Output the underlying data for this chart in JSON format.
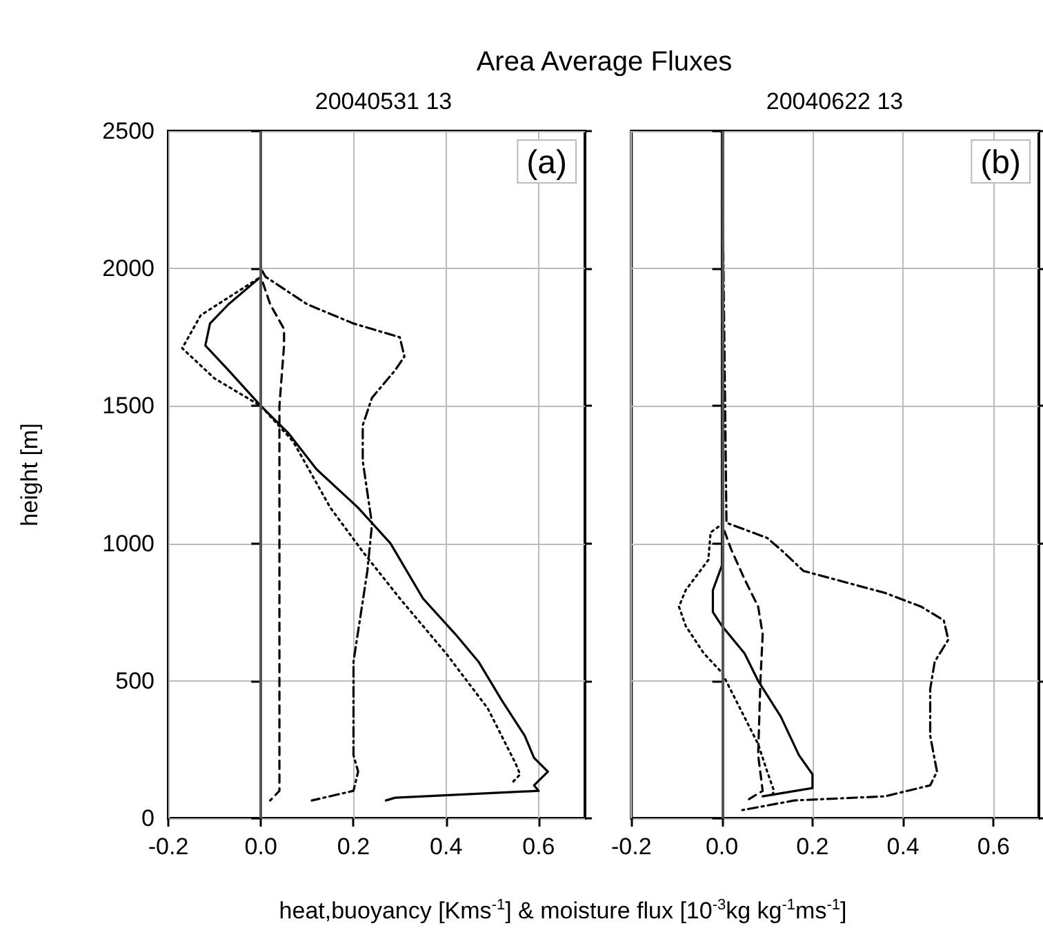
{
  "chart_data": [
    {
      "type": "line",
      "title": "Area Average Fluxes",
      "subtitle": "20040531 13",
      "xlabel": "heat,buoyancy [Kms$^{-1}$] & moisture flux [10$^{-3}$kg kg$^{-1}$ms$^{-1}$]",
      "ylabel": "height [m]",
      "annotations": [
        "(a)"
      ],
      "xlim": [
        -0.2,
        0.7
      ],
      "xticks": [
        -0.2,
        {
          "value": 0,
          "label": "0.0"
        },
        0.2,
        0.4,
        0.6
      ],
      "ylim": [
        0,
        2500
      ],
      "yticks": [
        0,
        500,
        1000,
        1500,
        2000,
        2500
      ],
      "grid": true,
      "marker": "none",
      "ref_lines": [
        {
          "axis": "x",
          "value": 0,
          "color": "#555555"
        }
      ],
      "series": [
        {
          "color": "#000000",
          "line_style": "solid",
          "x": [
            0,
            0,
            0,
            -0.07,
            -0.11,
            -0.12,
            -0.07,
            0,
            0.06,
            0.12,
            0.21,
            0.28,
            0.35,
            0.42,
            0.47,
            0.52,
            0.57,
            0.59,
            0.62,
            0.59,
            0.6,
            0.29,
            0.27
          ],
          "values": [
            2500,
            2000,
            1970,
            1870,
            1800,
            1720,
            1630,
            1500,
            1400,
            1270,
            1130,
            1000,
            800,
            670,
            570,
            430,
            300,
            220,
            170,
            120,
            100,
            75,
            65
          ]
        },
        {
          "color": "#000000",
          "line_style": "dotted",
          "x": [
            0,
            0,
            0,
            -0.13,
            -0.17,
            -0.1,
            0,
            0.07,
            0.15,
            0.22,
            0.3,
            0.4,
            0.49,
            0.55,
            0.56,
            0.54
          ],
          "values": [
            2500,
            2000,
            1970,
            1830,
            1710,
            1600,
            1500,
            1370,
            1130,
            970,
            800,
            600,
            400,
            200,
            160,
            125
          ]
        },
        {
          "color": "#000000",
          "line_style": "dashed",
          "x": [
            0,
            0,
            0,
            0.02,
            0.05,
            0.05,
            0.04,
            0.04,
            0.04,
            0.04,
            0.04,
            0.04,
            0.02
          ],
          "values": [
            2500,
            2000,
            1970,
            1870,
            1780,
            1720,
            1500,
            1300,
            900,
            570,
            230,
            100,
            65
          ]
        },
        {
          "color": "#000000",
          "line_style": "dashdot",
          "x": [
            0,
            0,
            0.01,
            0.1,
            0.2,
            0.3,
            0.31,
            0.29,
            0.24,
            0.22,
            0.22,
            0.24,
            0.23,
            0.2,
            0.2,
            0.21,
            0.2,
            0.11
          ],
          "values": [
            2500,
            2000,
            1970,
            1870,
            1800,
            1750,
            1680,
            1630,
            1530,
            1430,
            1300,
            1070,
            900,
            570,
            230,
            170,
            100,
            65
          ]
        }
      ]
    },
    {
      "type": "line",
      "subtitle": "20040622 13",
      "annotations": [
        "(b)"
      ],
      "tick_labels": "x",
      "xlim": [
        -0.2,
        0.7
      ],
      "xticks": [
        -0.2,
        {
          "value": 0,
          "label": "0.0"
        },
        0.2,
        0.4,
        0.6
      ],
      "ylim": [
        0,
        2500
      ],
      "yticks": [
        0,
        500,
        1000,
        1500,
        2000,
        2500
      ],
      "grid": true,
      "marker": "none",
      "ref_lines": [
        {
          "axis": "x",
          "value": 0,
          "color": "#555555"
        }
      ],
      "series": [
        {
          "color": "#000000",
          "line_style": "solid",
          "x": [
            0,
            0,
            0,
            -0.02,
            -0.02,
            0,
            0.05,
            0.08,
            0.13,
            0.17,
            0.2,
            0.2,
            0.09
          ],
          "values": [
            2500,
            1070,
            920,
            830,
            750,
            700,
            600,
            500,
            370,
            230,
            160,
            110,
            80
          ]
        },
        {
          "color": "#000000",
          "line_style": "dotted",
          "x": [
            0,
            0,
            -0.025,
            -0.03,
            -0.08,
            -0.095,
            -0.08,
            -0.04,
            0,
            0.04,
            0.08,
            0.1,
            0.115,
            0.11
          ],
          "values": [
            2500,
            1070,
            1040,
            940,
            830,
            770,
            700,
            600,
            530,
            400,
            270,
            170,
            100,
            80
          ]
        },
        {
          "color": "#000000",
          "line_style": "dashed",
          "x": [
            0,
            0,
            0.02,
            0.05,
            0.08,
            0.09,
            0.085,
            0.08,
            0.09,
            0.06
          ],
          "values": [
            2500,
            1070,
            980,
            870,
            770,
            670,
            500,
            230,
            100,
            70
          ]
        },
        {
          "color": "#000000",
          "line_style": "dashdot",
          "x": [
            0,
            0.01,
            0.1,
            0.135,
            0.18,
            0.36,
            0.44,
            0.49,
            0.5,
            0.47,
            0.46,
            0.46,
            0.475,
            0.46,
            0.36,
            0.16,
            0.045
          ],
          "values": [
            2500,
            1075,
            1020,
            970,
            900,
            820,
            770,
            720,
            650,
            570,
            470,
            300,
            170,
            120,
            80,
            65,
            30
          ]
        }
      ]
    }
  ]
}
